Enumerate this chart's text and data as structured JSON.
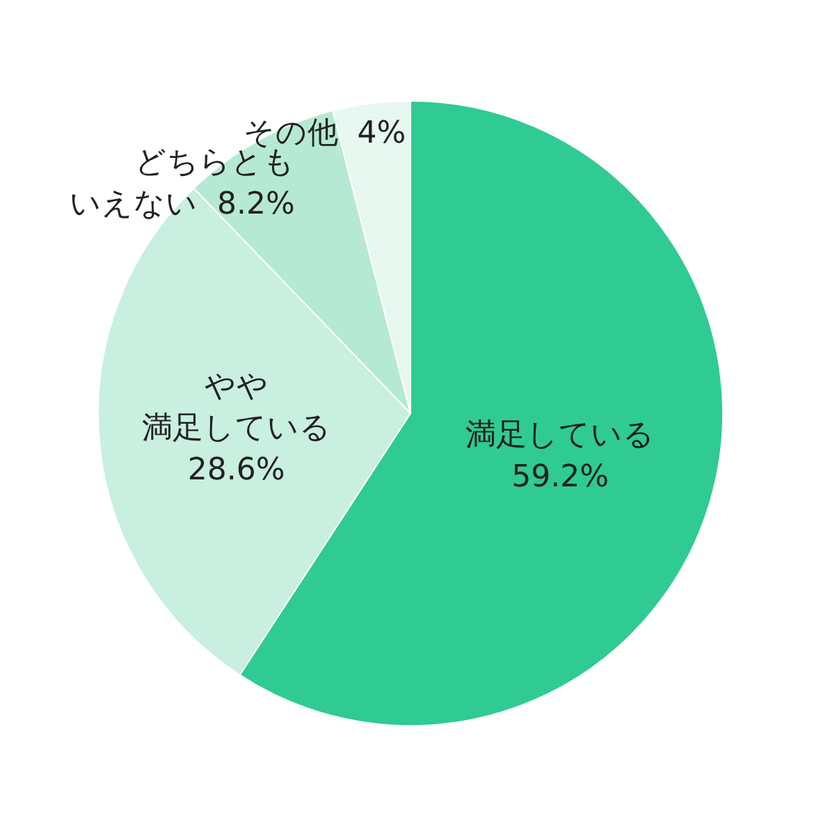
{
  "chart_data": {
    "type": "pie",
    "categories": [
      "満足している",
      "やや満足している",
      "どちらともいえない",
      "その他"
    ],
    "values": [
      59.2,
      28.6,
      8.2,
      4
    ],
    "colors": [
      "#2fcb93",
      "#c8efdf",
      "#b6e9d3",
      "#e6f8f0"
    ],
    "value_labels": [
      "59.2%",
      "28.6%",
      "8.2%",
      "4%"
    ]
  }
}
